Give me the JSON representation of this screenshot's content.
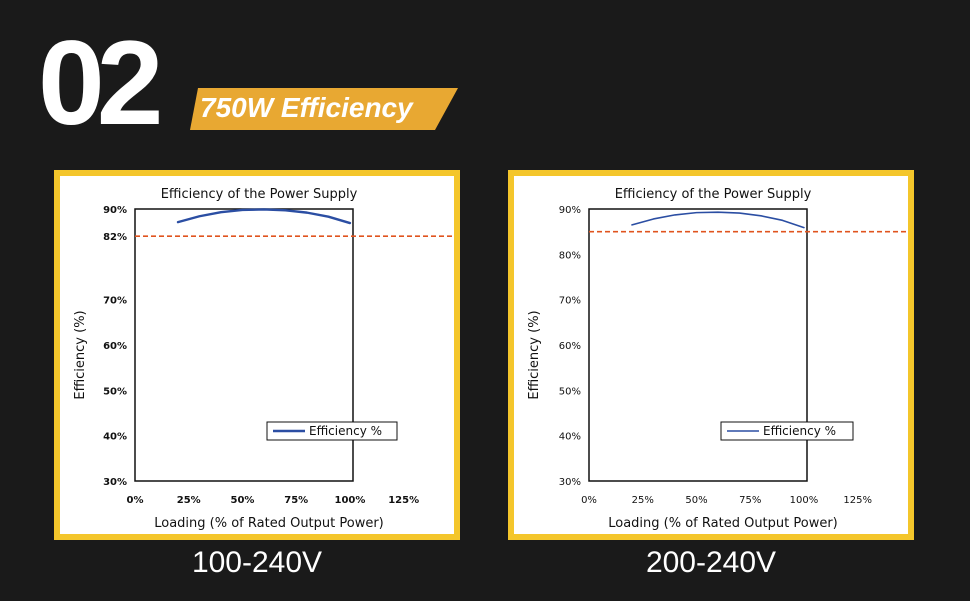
{
  "header": {
    "number": "02",
    "banner": "750W Efficiency",
    "banner_color": "#e8a832"
  },
  "chart_data": [
    {
      "type": "line",
      "title": "Efficiency of the Power Supply",
      "xlabel": "Loading (% of Rated Output Power)",
      "ylabel": "Efficiency (%)",
      "xlim": [
        0,
        125
      ],
      "x_ticks": [
        "0%",
        "25%",
        "50%",
        "75%",
        "100%",
        "125%"
      ],
      "y_ticks": [
        "30%",
        "40%",
        "50%",
        "60%",
        "70%",
        "82%",
        "90%"
      ],
      "y_tick_values": [
        30,
        40,
        50,
        60,
        70,
        82,
        90
      ],
      "y_scale": "non-uniform (82% tick placed at 84 plot units)",
      "ylim": [
        30,
        90
      ],
      "series": [
        {
          "name": "Efficiency %",
          "color": "#2b4ea3",
          "x": [
            20,
            30,
            40,
            50,
            60,
            70,
            80,
            90,
            100
          ],
          "y": [
            87.1,
            88.4,
            89.3,
            89.8,
            89.9,
            89.7,
            89.2,
            88.3,
            86.9
          ]
        }
      ],
      "reference_line": {
        "y": 82,
        "color": "#e0541f",
        "style": "dashed"
      },
      "legend_position": "lower-right",
      "caption": "100-240V"
    },
    {
      "type": "line",
      "title": "Efficiency of the Power Supply",
      "xlabel": "Loading (% of Rated Output Power)",
      "ylabel": "Efficiency (%)",
      "xlim": [
        0,
        125
      ],
      "x_ticks": [
        "0%",
        "25%",
        "50%",
        "75%",
        "100%",
        "125%"
      ],
      "y_ticks": [
        "30%",
        "40%",
        "50%",
        "60%",
        "70%",
        "80%",
        "90%"
      ],
      "y_tick_values": [
        30,
        40,
        50,
        60,
        70,
        80,
        90
      ],
      "ylim": [
        30,
        90
      ],
      "series": [
        {
          "name": "Efficiency %",
          "color": "#2b4ea3",
          "x": [
            20,
            30,
            40,
            50,
            60,
            70,
            80,
            90,
            100
          ],
          "y": [
            86.5,
            87.8,
            88.7,
            89.2,
            89.3,
            89.1,
            88.5,
            87.5,
            85.9
          ]
        }
      ],
      "reference_line": {
        "y": 85,
        "color": "#e0541f",
        "style": "dashed"
      },
      "legend_position": "lower-right",
      "caption": "200-240V"
    }
  ]
}
